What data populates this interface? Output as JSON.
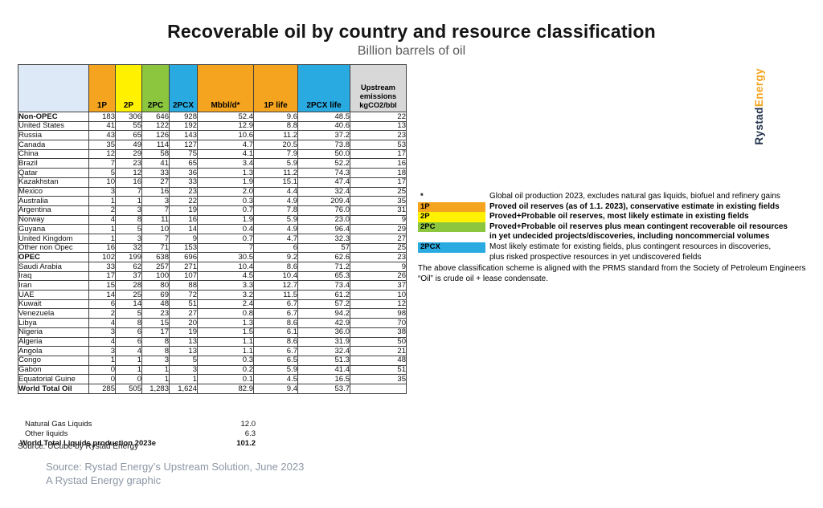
{
  "title": "Recoverable oil by country and resource classification",
  "subtitle": "Billion barrels of oil",
  "logo": {
    "part1": "Rystad",
    "part2": "Energy"
  },
  "colors": {
    "orange": "#F5A41F",
    "yellow": "#FFF100",
    "green": "#8CC63F",
    "blue": "#29ABE2",
    "light_blue": "#DDE9F6",
    "gray_header": "#D8D8D8",
    "logo_navy": "#24344D",
    "logo_orange": "#F5A41F"
  },
  "chart_data": {
    "type": "table",
    "title": "Recoverable oil by country and resource classification",
    "subtitle": "Billion barrels of oil",
    "columns": [
      {
        "label": "",
        "color": "#DDE9F6"
      },
      {
        "label": "1P",
        "color": "#F5A41F"
      },
      {
        "label": "2P",
        "color": "#FFF100"
      },
      {
        "label": "2PC",
        "color": "#8CC63F"
      },
      {
        "label": "2PCX",
        "color": "#29ABE2"
      },
      {
        "label": "Mbbl/d*",
        "color": "#F5A41F"
      },
      {
        "label": "1P life",
        "color": "#F5A41F"
      },
      {
        "label": "2PCX life",
        "color": "#29ABE2"
      },
      {
        "label": "Upstream emissions kgCO2/bbl",
        "color": "#D8D8D8"
      }
    ],
    "rows": [
      {
        "name": "Non-OPEC",
        "bold": true,
        "indent": false,
        "values": [
          "183",
          "306",
          "646",
          "928",
          "52.4",
          "9.6",
          "48.5",
          "22"
        ]
      },
      {
        "name": "United States",
        "bold": false,
        "indent": true,
        "values": [
          "41",
          "55",
          "122",
          "192",
          "12.9",
          "8.8",
          "40.6",
          "13"
        ]
      },
      {
        "name": "Russia",
        "bold": false,
        "indent": true,
        "values": [
          "43",
          "65",
          "126",
          "143",
          "10.6",
          "11.2",
          "37.2",
          "23"
        ]
      },
      {
        "name": "Canada",
        "bold": false,
        "indent": true,
        "values": [
          "35",
          "49",
          "114",
          "127",
          "4.7",
          "20.5",
          "73.8",
          "53"
        ]
      },
      {
        "name": "China",
        "bold": false,
        "indent": true,
        "values": [
          "12",
          "29",
          "58",
          "75",
          "4.1",
          "7.9",
          "50.0",
          "17"
        ]
      },
      {
        "name": "Brazil",
        "bold": false,
        "indent": true,
        "values": [
          "7",
          "23",
          "41",
          "65",
          "3.4",
          "5.9",
          "52.2",
          "16"
        ]
      },
      {
        "name": "Qatar",
        "bold": false,
        "indent": true,
        "values": [
          "5",
          "12",
          "33",
          "36",
          "1.3",
          "11.2",
          "74.3",
          "18"
        ]
      },
      {
        "name": "Kazakhstan",
        "bold": false,
        "indent": true,
        "values": [
          "10",
          "16",
          "27",
          "33",
          "1.9",
          "15.1",
          "47.4",
          "17"
        ]
      },
      {
        "name": "Mexico",
        "bold": false,
        "indent": true,
        "values": [
          "3",
          "7",
          "16",
          "23",
          "2.0",
          "4.4",
          "32.4",
          "25"
        ]
      },
      {
        "name": "Australia",
        "bold": false,
        "indent": true,
        "values": [
          "1",
          "1",
          "3",
          "22",
          "0.3",
          "4.9",
          "209.4",
          "35"
        ]
      },
      {
        "name": "Argentina",
        "bold": false,
        "indent": true,
        "values": [
          "2",
          "3",
          "7",
          "19",
          "0.7",
          "7.8",
          "76.0",
          "31"
        ]
      },
      {
        "name": "Norway",
        "bold": false,
        "indent": true,
        "values": [
          "4",
          "8",
          "11",
          "16",
          "1.9",
          "5.9",
          "23.0",
          "9"
        ]
      },
      {
        "name": "Guyana",
        "bold": false,
        "indent": true,
        "values": [
          "1",
          "5",
          "10",
          "14",
          "0.4",
          "4.9",
          "96.4",
          "29"
        ]
      },
      {
        "name": "United Kingdom",
        "bold": false,
        "indent": true,
        "values": [
          "1",
          "3",
          "7",
          "9",
          "0.7",
          "4.7",
          "32.3",
          "27"
        ]
      },
      {
        "name": "Other non Opec",
        "bold": false,
        "indent": true,
        "values": [
          "16",
          "32",
          "71",
          "153",
          "7",
          "6",
          "57",
          "25"
        ]
      },
      {
        "name": "OPEC",
        "bold": true,
        "indent": false,
        "values": [
          "102",
          "199",
          "638",
          "696",
          "30.5",
          "9.2",
          "62.6",
          "23"
        ]
      },
      {
        "name": "Saudi Arabia",
        "bold": false,
        "indent": true,
        "values": [
          "33",
          "62",
          "257",
          "271",
          "10.4",
          "8.6",
          "71.2",
          "9"
        ]
      },
      {
        "name": "Iraq",
        "bold": false,
        "indent": true,
        "values": [
          "17",
          "37",
          "100",
          "107",
          "4.5",
          "10.4",
          "65.3",
          "26"
        ]
      },
      {
        "name": "Iran",
        "bold": false,
        "indent": true,
        "values": [
          "15",
          "28",
          "80",
          "88",
          "3.3",
          "12.7",
          "73.4",
          "37"
        ]
      },
      {
        "name": "UAE",
        "bold": false,
        "indent": true,
        "values": [
          "14",
          "25",
          "69",
          "72",
          "3.2",
          "11.5",
          "61.2",
          "10"
        ]
      },
      {
        "name": "Kuwait",
        "bold": false,
        "indent": true,
        "values": [
          "6",
          "14",
          "48",
          "51",
          "2.4",
          "6.7",
          "57.2",
          "12"
        ]
      },
      {
        "name": "Venezuela",
        "bold": false,
        "indent": true,
        "values": [
          "2",
          "5",
          "23",
          "27",
          "0.8",
          "6.7",
          "94.2",
          "98"
        ]
      },
      {
        "name": "Libya",
        "bold": false,
        "indent": true,
        "values": [
          "4",
          "8",
          "15",
          "20",
          "1.3",
          "8.6",
          "42.9",
          "70"
        ]
      },
      {
        "name": "Nigeria",
        "bold": false,
        "indent": true,
        "values": [
          "3",
          "6",
          "17",
          "19",
          "1.5",
          "6.1",
          "36.0",
          "38"
        ]
      },
      {
        "name": "Algeria",
        "bold": false,
        "indent": true,
        "values": [
          "4",
          "6",
          "8",
          "13",
          "1.1",
          "8.6",
          "31.9",
          "50"
        ]
      },
      {
        "name": "Angola",
        "bold": false,
        "indent": true,
        "values": [
          "3",
          "4",
          "8",
          "13",
          "1.1",
          "6.7",
          "32.4",
          "21"
        ]
      },
      {
        "name": "Congo",
        "bold": false,
        "indent": true,
        "values": [
          "1",
          "1",
          "3",
          "5",
          "0.3",
          "6.5",
          "51.3",
          "48"
        ]
      },
      {
        "name": "Gabon",
        "bold": false,
        "indent": true,
        "values": [
          "0",
          "1",
          "1",
          "3",
          "0.2",
          "5.9",
          "41.4",
          "51"
        ]
      },
      {
        "name": "Equatorial Guine",
        "bold": false,
        "indent": true,
        "values": [
          "0",
          "0",
          "1",
          "1",
          "0.1",
          "4.5",
          "16.5",
          "35"
        ]
      },
      {
        "name": "World Total Oil",
        "bold": true,
        "indent": false,
        "values": [
          "285",
          "505",
          "1,283",
          "1,624",
          "82.9",
          "9.4",
          "53.7",
          ""
        ]
      }
    ],
    "footer_rows": [
      {
        "label": "Natural Gas Liquids",
        "value": "12.0",
        "bold": false
      },
      {
        "label": "Other liquids",
        "value": "6.3",
        "bold": false
      },
      {
        "label": "World Total Liquids production 2023e",
        "value": "101.2",
        "bold": true
      }
    ],
    "source": "Source: UCube by Rystad Energy"
  },
  "legend": {
    "rows": [
      {
        "marker": "*",
        "marker_color": "",
        "text": "Global oil production 2023, excludes natural gas liquids, biofuel and refinery gains",
        "bold": false
      },
      {
        "marker": "1P",
        "marker_color": "#F5A41F",
        "text": "Proved oil reserves (as of 1.1. 2023), conservative estimate in existing fields",
        "bold": true
      },
      {
        "marker": "2P",
        "marker_color": "#FFF100",
        "text": "Proved+Probable oil reserves, most likely estimate in existing fields",
        "bold": true
      },
      {
        "marker": "2PC",
        "marker_color": "#8CC63F",
        "text": "Proved+Probable oil reserves plus mean contingent recoverable oil resources",
        "bold": true
      },
      {
        "marker": "",
        "marker_color": "",
        "text": "in yet undecided projects/discoveries, including noncommercial volumes",
        "bold": true
      },
      {
        "marker": "2PCX",
        "marker_color": "#29ABE2",
        "text": "Most likely estimate for existing fields, plus contingent resources in discoveries,",
        "bold": false
      },
      {
        "marker": "",
        "marker_color": "",
        "text": "plus risked prospective resources in yet undiscovered fields",
        "bold": false
      }
    ],
    "note1": "The above classification scheme is aligned with the PRMS standard from the Society of Petroleum Engineers",
    "note2": "“Oil” is crude oil + lease condensate."
  },
  "footer": {
    "line1": "Source: Rystad Energy’s Upstream Solution, June 2023",
    "line2": "A Rystad Energy graphic"
  }
}
